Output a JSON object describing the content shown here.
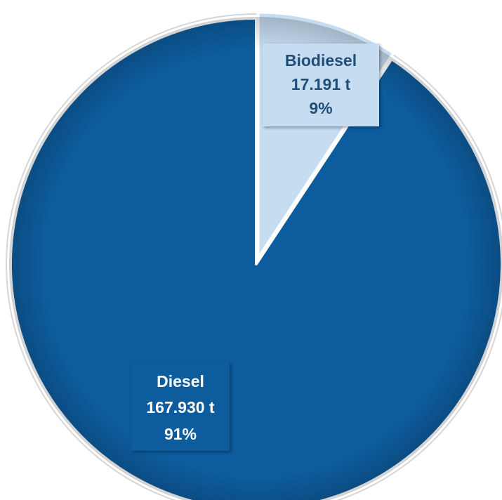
{
  "chart_data": {
    "type": "pie",
    "title": "",
    "slices": [
      {
        "category": "Biodiesel",
        "amount_label": "17.191 t",
        "percent_label": "9%",
        "value": 17.191,
        "percent": 9,
        "color": "#c5dcf1",
        "label_color": "#1f4e79"
      },
      {
        "category": "Diesel",
        "amount_label": "167.930 t",
        "percent_label": "91%",
        "value": 167.93,
        "percent": 91,
        "color": "#0d5c9d",
        "label_color": "#ffffff"
      }
    ],
    "unit": "t",
    "legend": "none",
    "start": "top",
    "direction": "clockwise"
  }
}
